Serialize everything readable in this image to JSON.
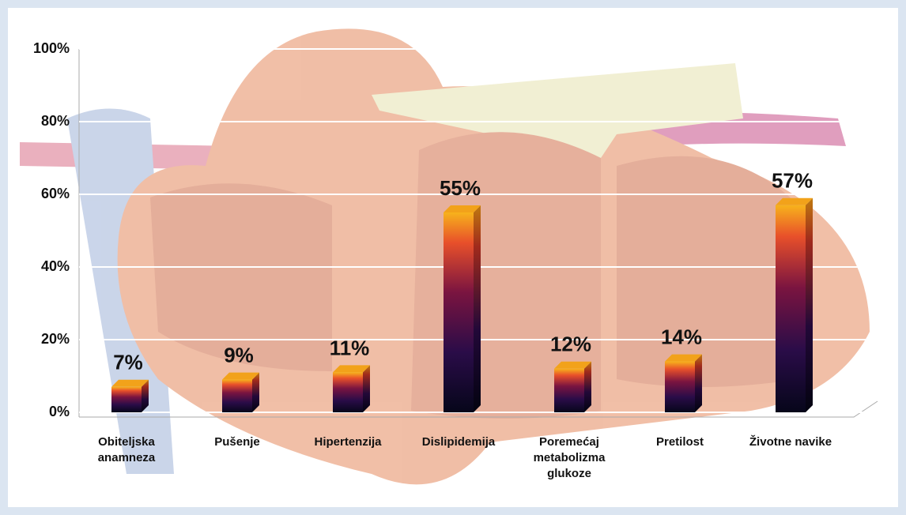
{
  "chart_data": {
    "type": "bar",
    "categories": [
      "Obiteljska anamneza",
      "Pušenje",
      "Hipertenzija",
      "Dislipidemija",
      "Poremećaj metabolizma glukoze",
      "Pretilost",
      "Životne navike"
    ],
    "values": [
      7,
      9,
      11,
      55,
      12,
      14,
      57
    ],
    "value_labels": [
      "7%",
      "9%",
      "11%",
      "55%",
      "12%",
      "14%",
      "57%"
    ],
    "ylim": [
      0,
      100
    ],
    "yticks": [
      {
        "value": 0,
        "label": "0%"
      },
      {
        "value": 20,
        "label": "20%"
      },
      {
        "value": 40,
        "label": "40%"
      },
      {
        "value": 60,
        "label": "60%"
      },
      {
        "value": 80,
        "label": "80%"
      },
      {
        "value": 100,
        "label": "100%"
      }
    ],
    "grid": true
  }
}
